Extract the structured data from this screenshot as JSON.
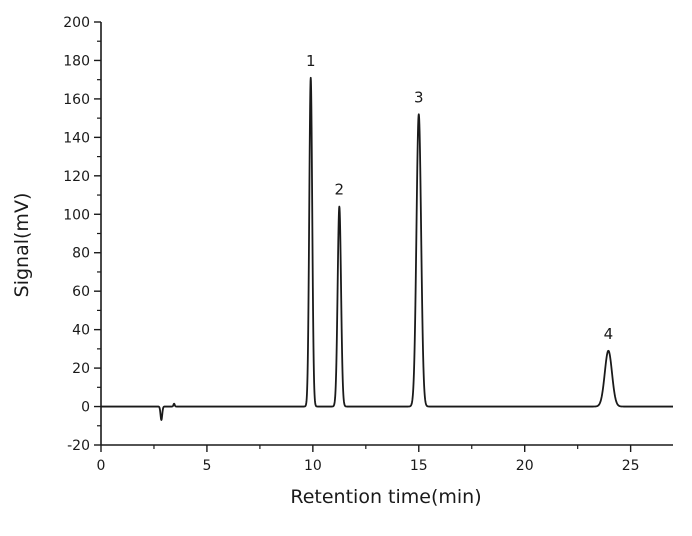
{
  "chart_data": {
    "type": "line",
    "title": "",
    "xlabel": "Retention time(min)",
    "ylabel": "Signal(mV)",
    "xlim": [
      0,
      27
    ],
    "ylim": [
      -20,
      200
    ],
    "x_ticks": [
      0,
      5,
      10,
      15,
      20,
      25
    ],
    "x_tick_labels": [
      "0",
      "5",
      "10",
      "15",
      "20",
      "25"
    ],
    "y_ticks": [
      -20,
      0,
      20,
      40,
      60,
      80,
      100,
      120,
      140,
      160,
      180,
      200
    ],
    "y_tick_labels": [
      "-20",
      "0",
      "20",
      "40",
      "60",
      "80",
      "100",
      "120",
      "140",
      "160",
      "180",
      "200"
    ],
    "grid": false,
    "line_color": "#1a1a1a",
    "baseline": 0,
    "peaks": [
      {
        "label": "1",
        "retention_time": 9.9,
        "height": 171,
        "width": 0.07
      },
      {
        "label": "2",
        "retention_time": 11.25,
        "height": 104,
        "width": 0.08
      },
      {
        "label": "3",
        "retention_time": 15.0,
        "height": 152,
        "width": 0.11
      },
      {
        "label": "4",
        "retention_time": 23.95,
        "height": 29,
        "width": 0.17
      }
    ],
    "artifacts": [
      {
        "retention_time": 2.85,
        "height": -7,
        "width": 0.04
      },
      {
        "retention_time": 3.45,
        "height": 1.5,
        "width": 0.03
      }
    ]
  }
}
